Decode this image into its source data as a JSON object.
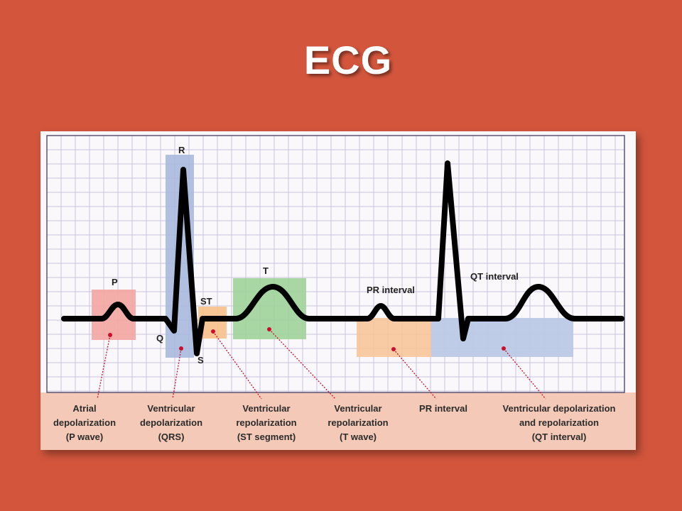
{
  "slide": {
    "title": "ECG"
  },
  "diagram": {
    "wave_labels": {
      "p": "P",
      "r": "R",
      "q": "Q",
      "s": "S",
      "st": "ST",
      "t": "T"
    },
    "interval_labels": {
      "pr": "PR interval",
      "qt": "QT interval"
    },
    "captions": {
      "p_wave": [
        "Atrial",
        "depolarization",
        "(P wave)"
      ],
      "qrs": [
        "Ventricular",
        "depolarization",
        "(QRS)"
      ],
      "st_segment": [
        "Ventricular",
        "repolarization",
        "(ST segment)"
      ],
      "t_wave": [
        "Ventricular",
        "repolarization",
        "(T wave)"
      ],
      "pr_interval": [
        "PR interval"
      ],
      "qt_interval": [
        "Ventricular depolarization",
        "and repolarization",
        "(QT interval)"
      ]
    },
    "colors": {
      "background": "#d2553c",
      "paper": "#faf8fb",
      "grid": "#c9c3dc",
      "caption_band": "#f4c9b8",
      "p_box": "#f3a5a0",
      "qrs_box": "#a9b8de",
      "st_box": "#f7c08a",
      "t_box": "#9fd39a",
      "pr_box": "#f8c59a",
      "qt_box": "#bcc9e6",
      "trace": "#000000",
      "pointer": "#c8102e"
    }
  }
}
